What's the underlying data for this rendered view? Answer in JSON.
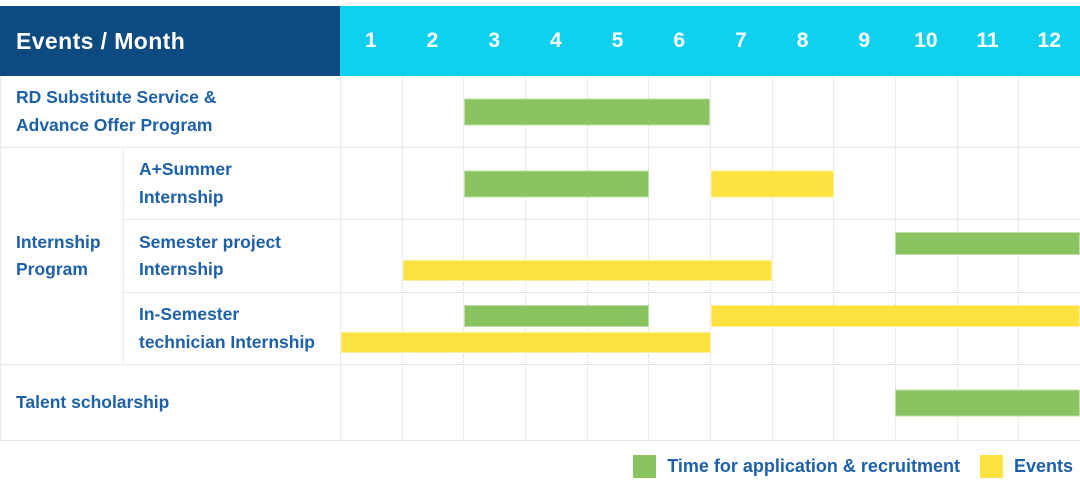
{
  "palette": {
    "header_bg": "#0d4a80",
    "months_bg": "#0fd1ee",
    "header_text": "#ffffff",
    "text_blue": "#1d60a7",
    "green": "#8ac461",
    "yellow": "#fde240",
    "grid_dotted": "#d5d5d5",
    "row_border": "#e7e7e7"
  },
  "chart_data": {
    "type": "table",
    "title": "Events / Month",
    "x": [
      1,
      2,
      3,
      4,
      5,
      6,
      7,
      8,
      9,
      10,
      11,
      12
    ],
    "xlabel": "Month",
    "legend_position": "bottom-right",
    "grid": true,
    "series": [
      {
        "name": "RD Substitute Service & Advance Offer Program",
        "segments": [
          {
            "type": "Time for application & recruitment",
            "start_month": 3,
            "end_month": 6
          }
        ]
      },
      {
        "name": "A+Summer Internship",
        "group": "Internship Program",
        "segments": [
          {
            "type": "Time for application & recruitment",
            "start_month": 3,
            "end_month": 5
          },
          {
            "type": "Events",
            "start_month": 7,
            "end_month": 8
          }
        ]
      },
      {
        "name": "Semester project Internship",
        "group": "Internship Program",
        "segments": [
          {
            "type": "Time for application & recruitment",
            "start_month": 10,
            "end_month": 12
          },
          {
            "type": "Events",
            "start_month": 2,
            "end_month": 7
          }
        ]
      },
      {
        "name": "In-Semester technician Internship",
        "group": "Internship Program",
        "segments": [
          {
            "type": "Time for application & recruitment",
            "start_month": 3,
            "end_month": 5
          },
          {
            "type": "Events",
            "start_month": 7,
            "end_month": 12
          },
          {
            "type": "Events",
            "start_month": 1,
            "end_month": 6
          }
        ]
      },
      {
        "name": "Talent scholarship",
        "segments": [
          {
            "type": "Time for application & recruitment",
            "start_month": 10,
            "end_month": 12
          }
        ]
      }
    ]
  },
  "table": {
    "header": {
      "title": "Events / Month",
      "months": [
        "1",
        "2",
        "3",
        "4",
        "5",
        "6",
        "7",
        "8",
        "9",
        "10",
        "11",
        "12"
      ]
    },
    "group": {
      "label_lines": [
        "Internship",
        "Program"
      ]
    },
    "rows": [
      {
        "key": "rd-substitute-service",
        "label_lines": [
          "RD Substitute Service &",
          "Advance Offer Program"
        ],
        "bars": [
          {
            "color": "green",
            "lane": "center",
            "start_month": 3,
            "end_month": 6
          }
        ]
      },
      {
        "key": "a-plus-summer-internship",
        "label_lines": [
          "A+Summer",
          "Internship"
        ],
        "bars": [
          {
            "color": "green",
            "lane": "center",
            "start_month": 3,
            "end_month": 5
          },
          {
            "color": "yellow",
            "lane": "center",
            "start_month": 7,
            "end_month": 8
          }
        ]
      },
      {
        "key": "semester-project-internship",
        "label_lines": [
          "Semester project",
          "Internship"
        ],
        "bars": [
          {
            "color": "green",
            "lane": "top",
            "start_month": 10,
            "end_month": 12
          },
          {
            "color": "yellow",
            "lane": "bottom",
            "start_month": 2,
            "end_month": 7
          }
        ]
      },
      {
        "key": "in-semester-technician-internship",
        "label_lines": [
          "In-Semester",
          "technician Internship"
        ],
        "bars": [
          {
            "color": "green",
            "lane": "top",
            "start_month": 3,
            "end_month": 5
          },
          {
            "color": "yellow",
            "lane": "top",
            "start_month": 7,
            "end_month": 12
          },
          {
            "color": "yellow",
            "lane": "bottom",
            "start_month": 1,
            "end_month": 6
          }
        ]
      },
      {
        "key": "talent-scholarship",
        "label_lines": [
          "Talent scholarship"
        ],
        "bars": [
          {
            "color": "green",
            "lane": "center",
            "start_month": 10,
            "end_month": 12
          }
        ]
      }
    ]
  },
  "legend": {
    "items": [
      {
        "color_key": "green",
        "label": "Time for application & recruitment"
      },
      {
        "color_key": "yellow",
        "label": "Events"
      }
    ]
  }
}
